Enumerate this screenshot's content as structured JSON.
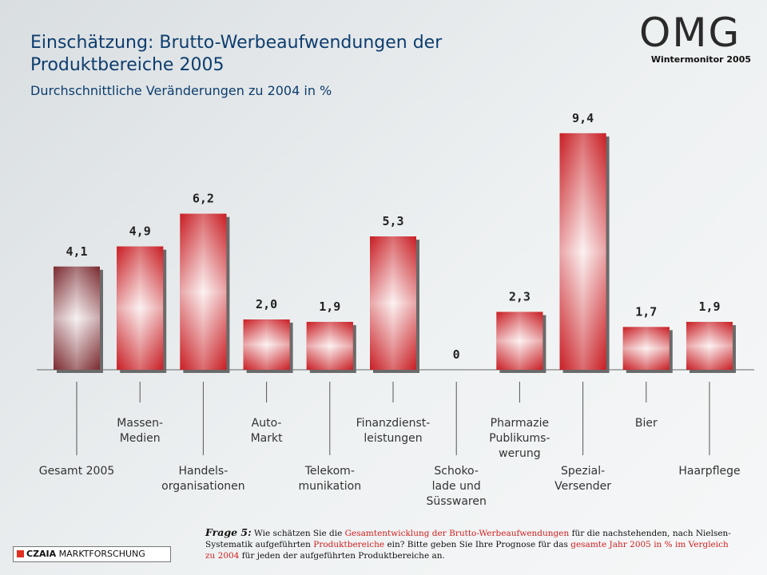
{
  "header": {
    "title": "Einschätzung: Brutto-Werbeaufwendungen der Produktbereiche 2005",
    "subtitle": "Durchschnittliche Veränderungen zu 2004 in %",
    "logo_text": "OMG",
    "wintermonitor": "Wintermonitor 2005"
  },
  "chart_data": {
    "type": "bar",
    "categories": [
      "Gesamt 2005",
      "Massen-\nMedien",
      "Handels-\norganisationen",
      "Auto-\nMarkt",
      "Telekom-\nmunikation",
      "Finanzdienst-\nleistungen",
      "Schoko-\nlade und\nSüsswaren",
      "Pharmazie\nPublikums-\nwerung",
      "Spezial-\nVersender",
      "Bier",
      "Haarpflege"
    ],
    "values": [
      4.1,
      4.9,
      6.2,
      2.0,
      1.9,
      5.3,
      0,
      2.3,
      9.4,
      1.7,
      1.9
    ],
    "value_labels": [
      "4,1",
      "4,9",
      "6,2",
      "2,0",
      "1,9",
      "5,3",
      "0",
      "2,3",
      "9,4",
      "1,7",
      "1,9"
    ],
    "label_rows": [
      "low",
      "high",
      "low",
      "high",
      "low",
      "high",
      "low",
      "high",
      "low",
      "high",
      "low"
    ],
    "ylim": [
      0,
      10
    ],
    "grid": false,
    "colors": {
      "highlight": "#7a2a30",
      "bar_dark": "#c81e24",
      "bar_light": "#ffffff"
    }
  },
  "footer": {
    "company_bold": "CZAIA",
    "company_rest": " MARKTFORSCHUNG",
    "question_label": "Frage 5:",
    "question_parts": [
      {
        "text": " Wie schätzen Sie die ",
        "red": false
      },
      {
        "text": "Gesamtentwicklung der Brutto-Werbeaufwendungen",
        "red": true
      },
      {
        "text": " für die nachstehenden, nach Nielsen-Systematik aufgeführten ",
        "red": false
      },
      {
        "text": "Produktbereiche",
        "red": true
      },
      {
        "text": " ein? Bitte geben Sie Ihre Prognose für das ",
        "red": false
      },
      {
        "text": "gesamte Jahr 2005 in % im Vergleich zu 2004",
        "red": true
      },
      {
        "text": " für jeden der aufgeführten Produktbereiche an.",
        "red": false
      }
    ]
  }
}
